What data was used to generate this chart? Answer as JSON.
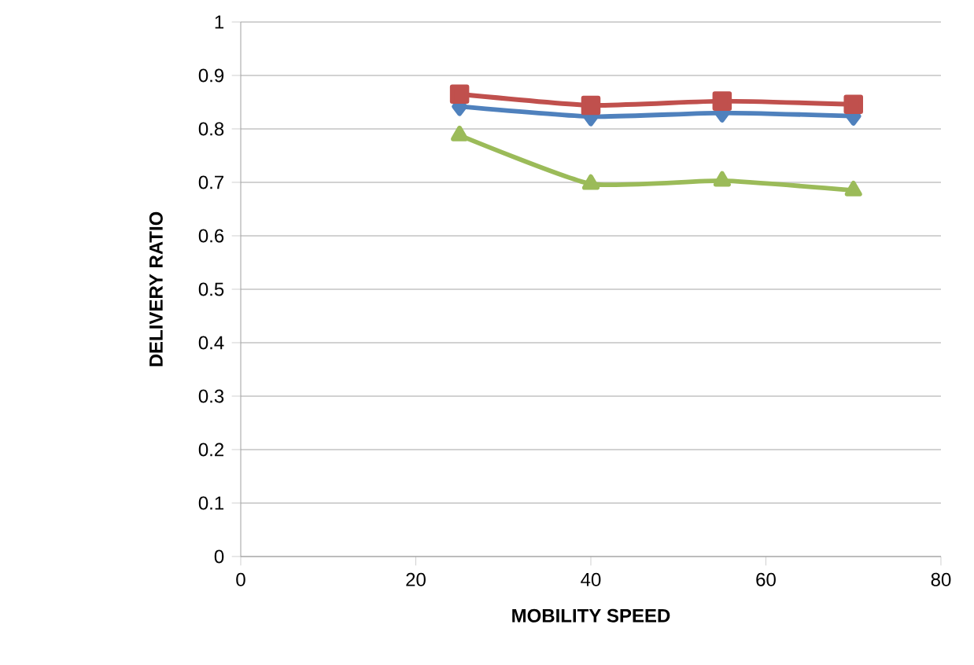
{
  "chart_data": {
    "type": "line",
    "xlabel": "MOBILITY SPEED",
    "ylabel": "DELIVERY RATIO",
    "x": [
      25,
      40,
      55,
      70
    ],
    "series": [
      {
        "color": "#4f81bd",
        "marker": "diamond",
        "values": [
          0.842,
          0.823,
          0.83,
          0.824
        ]
      },
      {
        "color": "#c0504d",
        "marker": "square",
        "values": [
          0.865,
          0.844,
          0.852,
          0.846
        ]
      },
      {
        "color": "#9bbb59",
        "marker": "triangle",
        "values": [
          0.788,
          0.697,
          0.703,
          0.685
        ]
      }
    ],
    "xlim": [
      0,
      80
    ],
    "xticks": [
      0,
      20,
      40,
      60,
      80
    ],
    "ylim": [
      0,
      1
    ],
    "yticks": [
      0,
      0.1,
      0.2,
      0.3,
      0.4,
      0.5,
      0.6,
      0.7,
      0.8,
      0.9,
      1
    ],
    "grid": "y"
  }
}
